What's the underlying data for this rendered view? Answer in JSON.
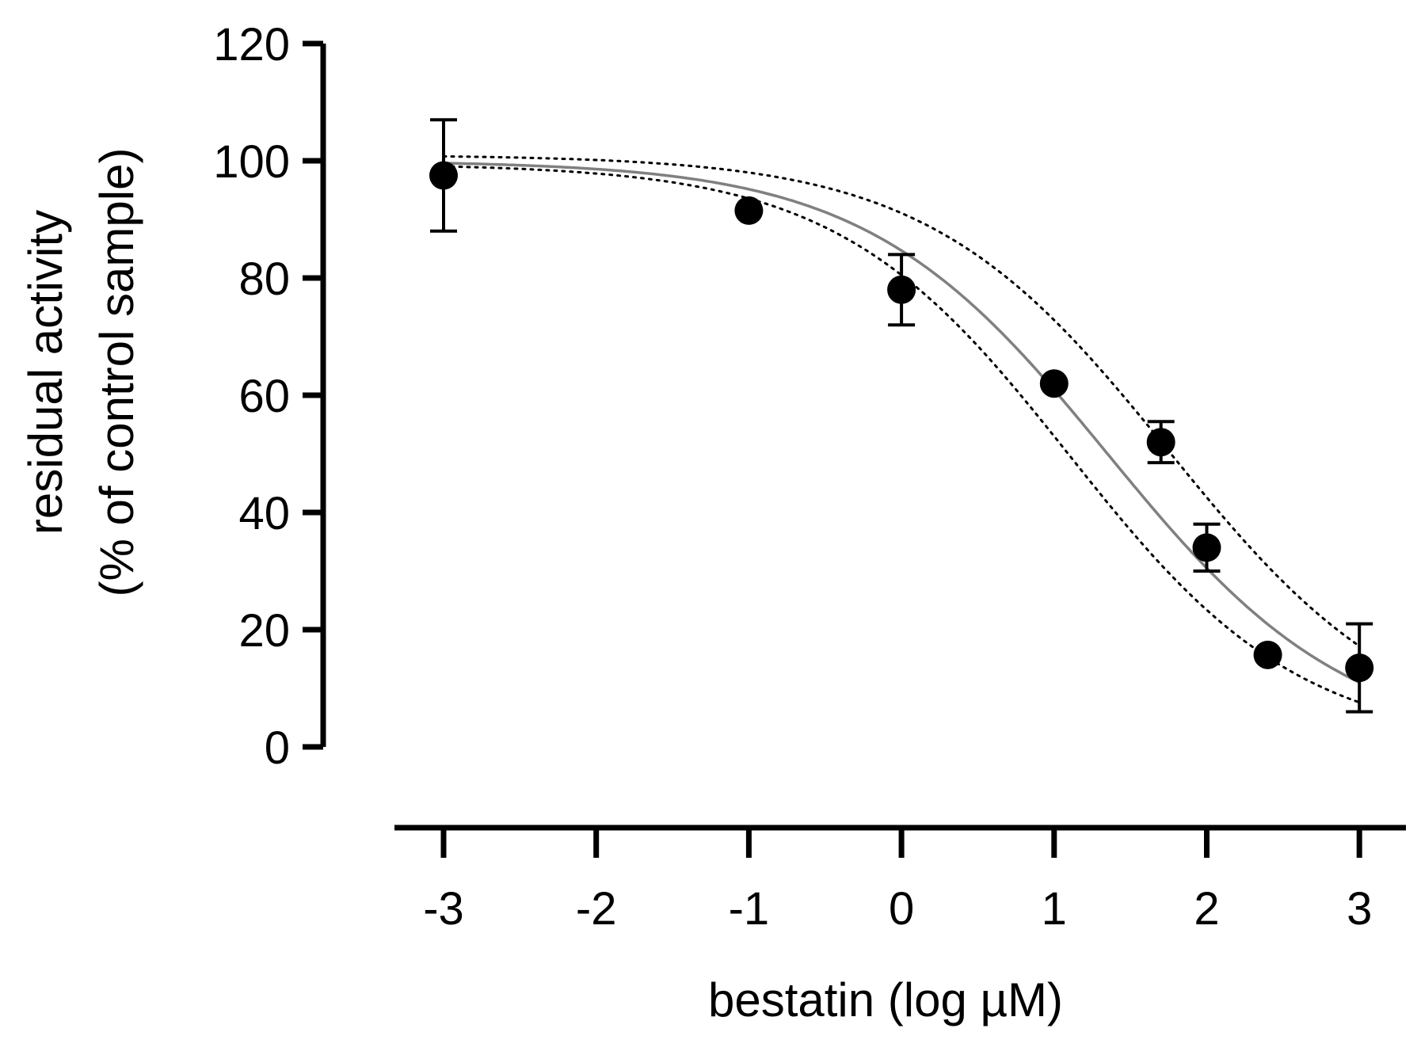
{
  "chart_data": {
    "type": "scatter",
    "title": "",
    "xlabel": "bestatin (log µM)",
    "ylabel_line1": "residual activity",
    "ylabel_line2": "(% of control sample)",
    "xlim": [
      -3.3,
      3.3
    ],
    "ylim": [
      0,
      120
    ],
    "x_ticks": [
      -3,
      -2,
      -1,
      0,
      1,
      2,
      3
    ],
    "x_tick_labels": [
      "-3",
      "-2",
      "-1",
      "0",
      "1",
      "2",
      "3"
    ],
    "y_ticks": [
      0,
      20,
      40,
      60,
      80,
      100,
      120
    ],
    "y_tick_labels": [
      "0",
      "20",
      "40",
      "60",
      "80",
      "100",
      "120"
    ],
    "grid": false,
    "series": [
      {
        "name": "residual activity",
        "marker": "filled-circle",
        "color": "#000000",
        "points": [
          {
            "x": -3,
            "y": 97.5,
            "err_low": 9.5,
            "err_high": 9.5
          },
          {
            "x": -1,
            "y": 91.5,
            "err_low": 0,
            "err_high": 0
          },
          {
            "x": 0,
            "y": 78,
            "err_low": 6,
            "err_high": 6
          },
          {
            "x": 1,
            "y": 62,
            "err_low": 0,
            "err_high": 0
          },
          {
            "x": 1.7,
            "y": 52,
            "err_low": 3.5,
            "err_high": 3.5
          },
          {
            "x": 2,
            "y": 34,
            "err_low": 4,
            "err_high": 4
          },
          {
            "x": 2.4,
            "y": 15.7,
            "err_low": 0,
            "err_high": 0
          },
          {
            "x": 3,
            "y": 13.5,
            "err_low": 7.5,
            "err_high": 7.5
          }
        ]
      }
    ],
    "fit": {
      "name": "sigmoidal fit",
      "color": "#808080",
      "model": "four-parameter logistic",
      "top": 100,
      "bottom": 0,
      "log_ic50": 1.35,
      "hill_slope": -0.55,
      "confidence_band": {
        "color": "#000000",
        "style": "dotted",
        "upper": {
          "top": 101,
          "bottom": 0,
          "log_ic50": 1.75,
          "hill_slope": -0.55
        },
        "lower": {
          "top": 99.5,
          "bottom": 0,
          "log_ic50": 1.1,
          "hill_slope": -0.57
        }
      }
    }
  }
}
